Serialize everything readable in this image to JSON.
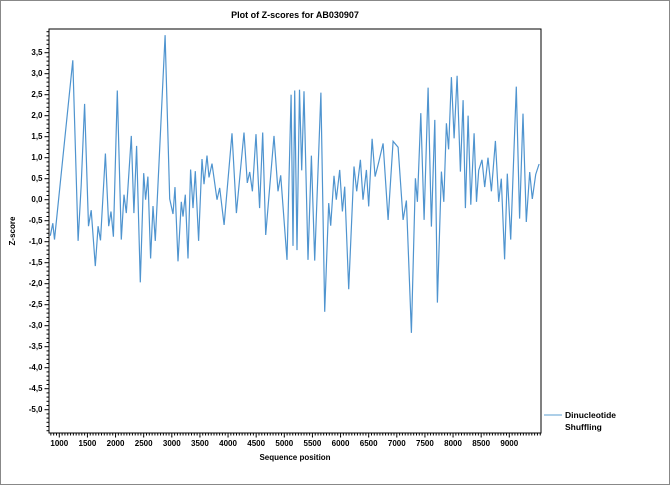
{
  "chart_data": {
    "type": "line",
    "title": "Plot of Z-scores for AB030907",
    "xlabel": "Sequence position",
    "ylabel": "Z-score",
    "xlim": [
      817,
      9565
    ],
    "ylim": [
      -5.55,
      4.06
    ],
    "grid": false,
    "decimal_separator": ",",
    "legend_position": "bottom-right-outside",
    "legend": {
      "line1": "Dinucleotide",
      "line2": "Shuffling"
    },
    "x_ticks": {
      "labels": [
        "1000",
        "1500",
        "2000",
        "2500",
        "3000",
        "3500",
        "4000",
        "4500",
        "5000",
        "5500",
        "6000",
        "6500",
        "7000",
        "7500",
        "8000",
        "8500",
        "9000"
      ],
      "values": [
        1000,
        1500,
        2000,
        2500,
        3000,
        3500,
        4000,
        4500,
        5000,
        5500,
        6000,
        6500,
        7000,
        7500,
        8000,
        8500,
        9000
      ],
      "minor_step": 50
    },
    "y_ticks": {
      "labels": [
        "3,5",
        "3,0",
        "2,5",
        "2,0",
        "1,5",
        "1,0",
        "0,5",
        "0,0",
        "-0,5",
        "-1,0",
        "-1,5",
        "-2,0",
        "-2,5",
        "-3,0",
        "-3,5",
        "-4,0",
        "-4,5",
        "-5,0"
      ],
      "values": [
        3.5,
        3.0,
        2.5,
        2.0,
        1.5,
        1.0,
        0.5,
        0.0,
        -0.5,
        -1.0,
        -1.5,
        -2.0,
        -2.5,
        -3.0,
        -3.5,
        -4.0,
        -4.5,
        -5.0
      ],
      "minor_step": 0.1
    },
    "colors": {
      "line": "#4f94cf",
      "legend_line": "#92bfe0",
      "frame": "#000000",
      "tick": "#000000",
      "text": "#000000",
      "background": "#ffffff",
      "canvas_border": "#888888"
    },
    "series": [
      {
        "name": "Dinucleotide Shuffling",
        "color": "#4f94cf",
        "points": [
          [
            840,
            -0.86
          ],
          [
            885,
            -0.56
          ],
          [
            915,
            -0.95
          ],
          [
            1240,
            3.32
          ],
          [
            1335,
            -0.98
          ],
          [
            1390,
            0.35
          ],
          [
            1450,
            2.28
          ],
          [
            1520,
            -0.63
          ],
          [
            1567,
            -0.25
          ],
          [
            1640,
            -1.58
          ],
          [
            1690,
            -0.63
          ],
          [
            1732,
            -0.97
          ],
          [
            1820,
            1.1
          ],
          [
            1878,
            -0.63
          ],
          [
            1919,
            -0.28
          ],
          [
            1961,
            -0.88
          ],
          [
            2032,
            2.6
          ],
          [
            2102,
            -0.95
          ],
          [
            2150,
            0.12
          ],
          [
            2191,
            -0.32
          ],
          [
            2280,
            1.52
          ],
          [
            2327,
            -0.32
          ],
          [
            2375,
            1.28
          ],
          [
            2440,
            -1.97
          ],
          [
            2500,
            0.63
          ],
          [
            2535,
            0.0
          ],
          [
            2576,
            0.55
          ],
          [
            2623,
            -1.4
          ],
          [
            2665,
            -0.15
          ],
          [
            2706,
            -0.98
          ],
          [
            2880,
            3.92
          ],
          [
            2962,
            0.02
          ],
          [
            3021,
            -0.34
          ],
          [
            3057,
            0.3
          ],
          [
            3110,
            -1.47
          ],
          [
            3169,
            -0.05
          ],
          [
            3199,
            -0.4
          ],
          [
            3240,
            0.12
          ],
          [
            3288,
            -1.4
          ],
          [
            3335,
            0.72
          ],
          [
            3377,
            -0.2
          ],
          [
            3418,
            0.68
          ],
          [
            3477,
            -0.98
          ],
          [
            3537,
            0.97
          ],
          [
            3572,
            0.37
          ],
          [
            3625,
            1.05
          ],
          [
            3661,
            0.53
          ],
          [
            3714,
            0.86
          ],
          [
            3804,
            0.0
          ],
          [
            3851,
            0.28
          ],
          [
            3929,
            -0.6
          ],
          [
            4071,
            1.58
          ],
          [
            4148,
            -0.32
          ],
          [
            4284,
            1.6
          ],
          [
            4343,
            0.4
          ],
          [
            4385,
            0.66
          ],
          [
            4432,
            0.2
          ],
          [
            4497,
            1.56
          ],
          [
            4560,
            -0.2
          ],
          [
            4616,
            1.6
          ],
          [
            4669,
            -0.84
          ],
          [
            4817,
            1.52
          ],
          [
            4888,
            0.2
          ],
          [
            4936,
            0.58
          ],
          [
            5048,
            -1.43
          ],
          [
            5120,
            2.5
          ],
          [
            5155,
            -1.1
          ],
          [
            5185,
            2.6
          ],
          [
            5226,
            -1.2
          ],
          [
            5270,
            2.62
          ],
          [
            5310,
            0.7
          ],
          [
            5350,
            2.58
          ],
          [
            5421,
            -1.43
          ],
          [
            5481,
            1.05
          ],
          [
            5540,
            -1.45
          ],
          [
            5650,
            2.55
          ],
          [
            5718,
            -2.67
          ],
          [
            5789,
            -0.08
          ],
          [
            5825,
            -0.62
          ],
          [
            5884,
            0.57
          ],
          [
            5925,
            0.0
          ],
          [
            5984,
            0.71
          ],
          [
            6032,
            -0.28
          ],
          [
            6073,
            0.31
          ],
          [
            6144,
            -2.13
          ],
          [
            6239,
            0.79
          ],
          [
            6287,
            0.2
          ],
          [
            6352,
            0.95
          ],
          [
            6399,
            0.0
          ],
          [
            6459,
            0.71
          ],
          [
            6500,
            -0.16
          ],
          [
            6560,
            1.45
          ],
          [
            6615,
            0.55
          ],
          [
            6680,
            0.9
          ],
          [
            6756,
            1.34
          ],
          [
            6845,
            -0.48
          ],
          [
            6934,
            1.39
          ],
          [
            7023,
            1.25
          ],
          [
            7112,
            -0.48
          ],
          [
            7171,
            -0.02
          ],
          [
            7260,
            -3.17
          ],
          [
            7331,
            0.51
          ],
          [
            7367,
            -0.05
          ],
          [
            7426,
            2.06
          ],
          [
            7485,
            -0.48
          ],
          [
            7556,
            2.67
          ],
          [
            7615,
            -0.64
          ],
          [
            7675,
            1.9
          ],
          [
            7722,
            -2.45
          ],
          [
            7793,
            0.67
          ],
          [
            7835,
            -0.05
          ],
          [
            7882,
            1.82
          ],
          [
            7920,
            1.2
          ],
          [
            7971,
            2.92
          ],
          [
            8019,
            1.46
          ],
          [
            8072,
            2.95
          ],
          [
            8131,
            0.67
          ],
          [
            8179,
            2.37
          ],
          [
            8220,
            -0.2
          ],
          [
            8268,
            2.0
          ],
          [
            8315,
            -0.12
          ],
          [
            8375,
            1.58
          ],
          [
            8416,
            -0.05
          ],
          [
            8456,
            0.7
          ],
          [
            8515,
            0.95
          ],
          [
            8562,
            0.3
          ],
          [
            8621,
            1.0
          ],
          [
            8681,
            0.2
          ],
          [
            8752,
            1.4
          ],
          [
            8811,
            -0.05
          ],
          [
            8858,
            0.5
          ],
          [
            8917,
            -1.42
          ],
          [
            8965,
            0.62
          ],
          [
            9024,
            -0.95
          ],
          [
            9125,
            2.69
          ],
          [
            9184,
            -0.45
          ],
          [
            9243,
            2.05
          ],
          [
            9303,
            -0.53
          ],
          [
            9362,
            0.66
          ],
          [
            9409,
            0.02
          ],
          [
            9470,
            0.6
          ],
          [
            9530,
            0.85
          ]
        ]
      }
    ]
  }
}
